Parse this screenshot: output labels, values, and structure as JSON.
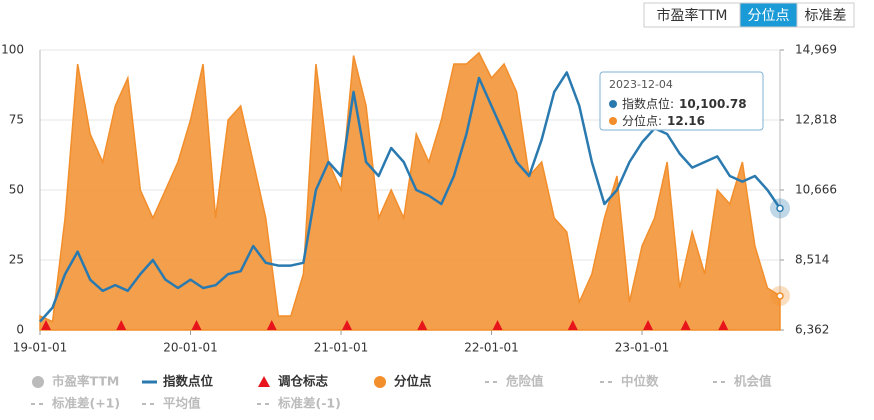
{
  "chart_data": {
    "type": "line-area",
    "tabs": {
      "items": [
        "市盈率TTM",
        "分位点",
        "标准差"
      ],
      "active": 1
    },
    "categories": [
      "19-01-01",
      null,
      null,
      null,
      null,
      null,
      null,
      null,
      null,
      null,
      null,
      null,
      "20-01-01",
      null,
      null,
      null,
      null,
      null,
      null,
      null,
      null,
      null,
      null,
      null,
      "21-01-01",
      null,
      null,
      null,
      null,
      null,
      null,
      null,
      null,
      null,
      null,
      null,
      "22-01-01",
      null,
      null,
      null,
      null,
      null,
      null,
      null,
      null,
      null,
      null,
      null,
      "23-01-01",
      null,
      null,
      null,
      null,
      null,
      null,
      null,
      null,
      null,
      null,
      null
    ],
    "series": [
      {
        "name": "分位点",
        "color": "#f28e2b",
        "kind": "area",
        "axis": "y",
        "values": [
          5,
          3,
          40,
          95,
          70,
          60,
          80,
          90,
          50,
          40,
          50,
          60,
          75,
          95,
          40,
          75,
          80,
          60,
          40,
          5,
          5,
          20,
          95,
          60,
          50,
          98,
          80,
          40,
          50,
          40,
          70,
          60,
          75,
          95,
          95,
          99,
          90,
          95,
          85,
          55,
          60,
          40,
          35,
          10,
          20,
          40,
          55,
          10,
          30,
          40,
          60,
          15,
          35,
          20,
          50,
          45,
          60,
          30,
          15,
          12.16
        ]
      },
      {
        "name": "指数点位",
        "color": "#2a7ab0",
        "kind": "line",
        "axis": "y2",
        "values": [
          6620,
          7050,
          8080,
          8770,
          7910,
          7567,
          7740,
          7567,
          8080,
          8514,
          7910,
          7653,
          7910,
          7653,
          7740,
          8080,
          8170,
          8944,
          8428,
          8342,
          8342,
          8428,
          10666,
          11526,
          11096,
          13680,
          11526,
          11096,
          11956,
          11526,
          10666,
          10493,
          10235,
          11096,
          12387,
          14108,
          13248,
          12387,
          11526,
          11096,
          12215,
          13680,
          14280,
          13248,
          11526,
          10235,
          10666,
          11526,
          12129,
          12559,
          12387,
          11784,
          11354,
          11526,
          11698,
          11096,
          10924,
          11096,
          10666,
          10100.78
        ]
      }
    ],
    "rebalance": {
      "name": "调仓标志",
      "color": "#e8141b",
      "x": [
        0,
        6,
        12,
        18,
        24,
        30,
        36,
        42,
        48,
        51,
        54
      ]
    },
    "inactive_series": [
      {
        "name": "市盈率TTM",
        "style": "circle"
      },
      {
        "name": "危险值",
        "style": "dash"
      },
      {
        "name": "中位数",
        "style": "dash"
      },
      {
        "name": "机会值",
        "style": "dash"
      },
      {
        "name": "标准差(+1)",
        "style": "dash"
      },
      {
        "name": "平均值",
        "style": "dash"
      },
      {
        "name": "标准差(-1)",
        "style": "dash"
      }
    ],
    "ylim": [
      0,
      100
    ],
    "yticks": [
      0,
      25,
      50,
      75,
      100
    ],
    "y2lim": [
      6362,
      14969
    ],
    "y2ticks": [
      {
        "value": 6362,
        "label": "6,362"
      },
      {
        "value": 8514,
        "label": "8,514"
      },
      {
        "value": 10666,
        "label": "10,666"
      },
      {
        "value": 12818,
        "label": "12,818"
      },
      {
        "value": 14969,
        "label": "14,969"
      }
    ],
    "grid": true,
    "tooltip": {
      "date": "2023-12-04",
      "rows": [
        {
          "label": "指数点位:",
          "value": "10,100.78",
          "series": 1
        },
        {
          "label": "分位点:",
          "value": "12.16",
          "series": 0
        }
      ]
    }
  }
}
